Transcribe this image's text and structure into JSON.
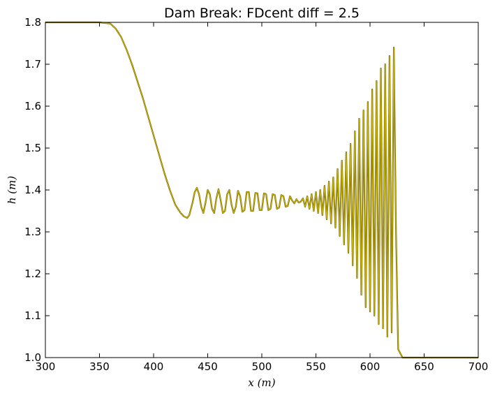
{
  "chart_data": {
    "type": "line",
    "title": "Dam Break: FDcent diff = 2.5",
    "xlabel": "x (m)",
    "ylabel": "h (m)",
    "xlim": [
      300,
      700
    ],
    "ylim": [
      1.0,
      1.8
    ],
    "xticks": [
      300,
      350,
      400,
      450,
      500,
      550,
      600,
      650,
      700
    ],
    "yticks": [
      1.0,
      1.1,
      1.2,
      1.3,
      1.4,
      1.5,
      1.6,
      1.7,
      1.8
    ],
    "xtick_labels": [
      "300",
      "350",
      "400",
      "450",
      "500",
      "550",
      "600",
      "650",
      "700"
    ],
    "ytick_labels": [
      "1.0",
      "1.1",
      "1.2",
      "1.3",
      "1.4",
      "1.5",
      "1.6",
      "1.7",
      "1.8"
    ],
    "grid": false,
    "legend": "none",
    "series": [
      {
        "color": "#c8b400",
        "x": [
          300,
          350,
          360,
          365,
          370,
          375,
          380,
          385,
          390,
          395,
          400,
          405,
          410,
          415,
          420,
          425,
          428,
          431,
          433,
          436,
          438,
          440,
          442,
          444,
          446,
          448,
          450,
          452,
          454,
          456,
          458,
          460,
          462,
          464,
          466,
          468,
          470,
          472,
          474,
          476,
          478,
          480,
          482,
          484,
          486,
          488,
          490,
          492,
          494,
          496,
          498,
          500,
          502,
          504,
          506,
          508,
          510,
          512,
          514,
          516,
          518,
          520,
          522,
          524,
          526,
          528,
          530,
          532,
          534,
          536,
          538,
          540,
          542,
          544,
          546,
          548,
          550,
          552,
          554,
          556,
          558,
          560,
          562,
          564,
          566,
          568,
          570,
          572,
          574,
          576,
          578,
          580,
          582,
          584,
          586,
          588,
          590,
          592,
          594,
          596,
          598,
          600,
          602,
          604,
          606,
          608,
          610,
          612,
          614,
          616,
          618,
          620,
          622,
          624,
          626,
          630,
          650,
          700
        ],
        "y": [
          1.8,
          1.8,
          1.797,
          1.785,
          1.765,
          1.735,
          1.7,
          1.66,
          1.62,
          1.575,
          1.53,
          1.485,
          1.44,
          1.4,
          1.365,
          1.345,
          1.337,
          1.333,
          1.34,
          1.37,
          1.395,
          1.405,
          1.39,
          1.36,
          1.345,
          1.37,
          1.4,
          1.39,
          1.355,
          1.345,
          1.38,
          1.402,
          1.375,
          1.345,
          1.35,
          1.39,
          1.4,
          1.365,
          1.345,
          1.36,
          1.398,
          1.385,
          1.348,
          1.352,
          1.395,
          1.395,
          1.35,
          1.35,
          1.393,
          1.392,
          1.352,
          1.352,
          1.392,
          1.39,
          1.352,
          1.355,
          1.39,
          1.388,
          1.355,
          1.358,
          1.388,
          1.385,
          1.36,
          1.362,
          1.385,
          1.375,
          1.368,
          1.378,
          1.37,
          1.372,
          1.38,
          1.36,
          1.385,
          1.355,
          1.39,
          1.35,
          1.395,
          1.345,
          1.4,
          1.34,
          1.41,
          1.33,
          1.42,
          1.32,
          1.43,
          1.31,
          1.45,
          1.29,
          1.47,
          1.27,
          1.49,
          1.25,
          1.51,
          1.22,
          1.54,
          1.19,
          1.57,
          1.15,
          1.59,
          1.12,
          1.61,
          1.11,
          1.64,
          1.1,
          1.66,
          1.08,
          1.69,
          1.07,
          1.7,
          1.05,
          1.72,
          1.06,
          1.74,
          1.3,
          1.02,
          1.0,
          1.0,
          1.0
        ]
      }
    ]
  }
}
